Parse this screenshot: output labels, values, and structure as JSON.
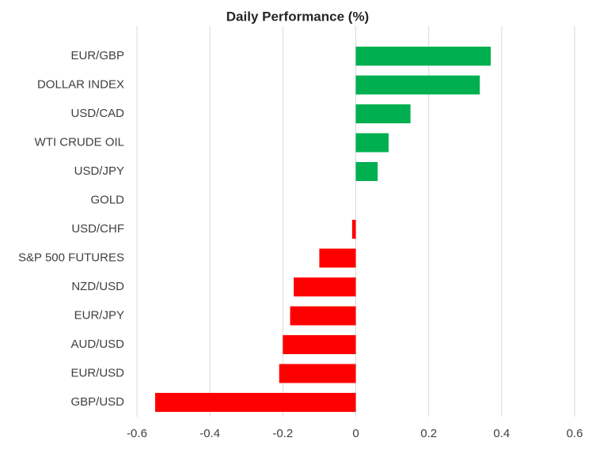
{
  "chart_data": {
    "type": "bar",
    "orientation": "horizontal",
    "title": "Daily Performance (%)",
    "categories": [
      "EUR/GBP",
      "DOLLAR INDEX",
      "USD/CAD",
      "WTI CRUDE OIL",
      "USD/JPY",
      "GOLD",
      "USD/CHF",
      "S&P 500 FUTURES",
      "NZD/USD",
      "EUR/JPY",
      "AUD/USD",
      "EUR/USD",
      "GBP/USD"
    ],
    "values": [
      0.37,
      0.34,
      0.15,
      0.09,
      0.06,
      0,
      -0.01,
      -0.1,
      -0.17,
      -0.18,
      -0.2,
      -0.21,
      -0.55
    ],
    "positive_color": "#00b050",
    "negative_color": "#ff0000",
    "xlim": [
      -0.6,
      0.6
    ],
    "xticks": [
      -0.6,
      -0.4,
      -0.2,
      0,
      0.2,
      0.4,
      0.6
    ],
    "grid": true
  }
}
